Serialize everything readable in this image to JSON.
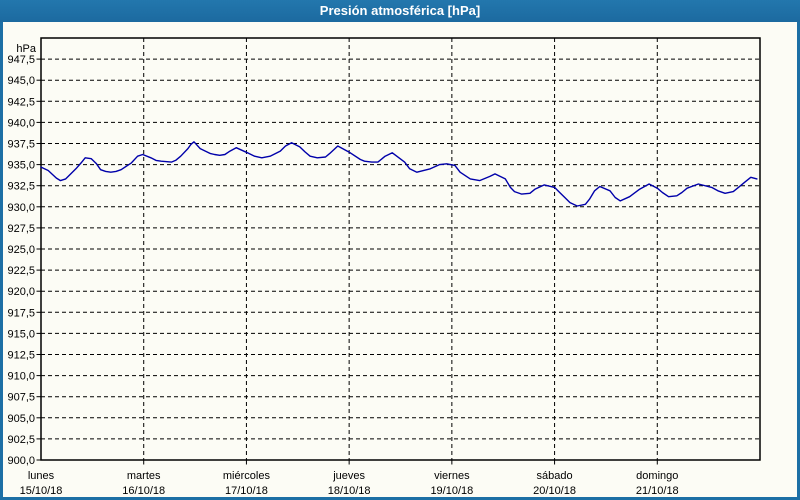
{
  "window": {
    "title": "Presión atmosférica [hPa]"
  },
  "colors": {
    "titlebar_bg": "#1d6fa5",
    "title_text": "#ffffff",
    "outer_border": "#1d6fa5",
    "background": "#fcfcf5",
    "plot_frame": "#000000",
    "grid": "#000000",
    "line": "#0000aa"
  },
  "chart_data": {
    "type": "line",
    "title": "Presión atmosférica [hPa]",
    "legend": "none",
    "grid": {
      "horizontal": "dashed",
      "vertical": "dashed"
    },
    "y_axis": {
      "unit_label": "hPa",
      "plot_top": 950.0,
      "plot_bottom": 900.0,
      "tick_step": 2.5,
      "decimal_separator": ",",
      "tick_labels": [
        "947,5",
        "945,0",
        "942,5",
        "940,0",
        "937,5",
        "935,0",
        "932,5",
        "930,0",
        "927,5",
        "925,0",
        "922,5",
        "920,0",
        "917,5",
        "915,0",
        "912,5",
        "910,0",
        "907,5",
        "905,0",
        "902,5",
        "900,0"
      ]
    },
    "x_axis": {
      "range_days": 7,
      "days": [
        {
          "name": "lunes",
          "date": "15/10/18"
        },
        {
          "name": "martes",
          "date": "16/10/18"
        },
        {
          "name": "miércoles",
          "date": "17/10/18"
        },
        {
          "name": "jueves",
          "date": "18/10/18"
        },
        {
          "name": "viernes",
          "date": "19/10/18"
        },
        {
          "name": "sábado",
          "date": "20/10/18"
        },
        {
          "name": "domingo",
          "date": "21/10/18"
        }
      ]
    },
    "series": [
      {
        "name": "Presión atmosférica",
        "color": "#0000aa",
        "units": "hPa",
        "points": [
          [
            0.0,
            934.7
          ],
          [
            0.07,
            934.3
          ],
          [
            0.15,
            933.4
          ],
          [
            0.19,
            933.1
          ],
          [
            0.24,
            933.3
          ],
          [
            0.34,
            934.5
          ],
          [
            0.39,
            935.2
          ],
          [
            0.43,
            935.8
          ],
          [
            0.49,
            935.7
          ],
          [
            0.54,
            935.1
          ],
          [
            0.58,
            934.4
          ],
          [
            0.63,
            934.2
          ],
          [
            0.68,
            934.1
          ],
          [
            0.73,
            934.2
          ],
          [
            0.78,
            934.4
          ],
          [
            0.88,
            935.2
          ],
          [
            0.94,
            936.0
          ],
          [
            0.99,
            936.2
          ],
          [
            1.07,
            935.8
          ],
          [
            1.12,
            935.5
          ],
          [
            1.17,
            935.4
          ],
          [
            1.27,
            935.3
          ],
          [
            1.31,
            935.5
          ],
          [
            1.36,
            936.0
          ],
          [
            1.43,
            936.9
          ],
          [
            1.46,
            937.4
          ],
          [
            1.49,
            937.7
          ],
          [
            1.55,
            936.9
          ],
          [
            1.65,
            936.3
          ],
          [
            1.69,
            936.2
          ],
          [
            1.74,
            936.1
          ],
          [
            1.79,
            936.2
          ],
          [
            1.84,
            936.6
          ],
          [
            1.9,
            937.0
          ],
          [
            2.01,
            936.4
          ],
          [
            2.08,
            936.0
          ],
          [
            2.15,
            935.8
          ],
          [
            2.23,
            936.0
          ],
          [
            2.33,
            936.6
          ],
          [
            2.38,
            937.2
          ],
          [
            2.44,
            937.6
          ],
          [
            2.52,
            937.1
          ],
          [
            2.57,
            936.5
          ],
          [
            2.62,
            936.0
          ],
          [
            2.69,
            935.8
          ],
          [
            2.77,
            935.9
          ],
          [
            2.81,
            936.3
          ],
          [
            2.89,
            937.2
          ],
          [
            3.01,
            936.4
          ],
          [
            3.11,
            935.6
          ],
          [
            3.15,
            935.4
          ],
          [
            3.22,
            935.3
          ],
          [
            3.28,
            935.3
          ],
          [
            3.35,
            936.0
          ],
          [
            3.42,
            936.4
          ],
          [
            3.54,
            935.3
          ],
          [
            3.59,
            934.5
          ],
          [
            3.66,
            934.1
          ],
          [
            3.79,
            934.5
          ],
          [
            3.88,
            935.0
          ],
          [
            3.95,
            935.1
          ],
          [
            4.03,
            934.9
          ],
          [
            4.08,
            934.1
          ],
          [
            4.18,
            933.3
          ],
          [
            4.27,
            933.1
          ],
          [
            4.37,
            933.6
          ],
          [
            4.42,
            933.9
          ],
          [
            4.52,
            933.3
          ],
          [
            4.57,
            932.3
          ],
          [
            4.61,
            931.8
          ],
          [
            4.68,
            931.5
          ],
          [
            4.76,
            931.6
          ],
          [
            4.81,
            932.1
          ],
          [
            4.9,
            932.6
          ],
          [
            5.0,
            932.3
          ],
          [
            5.05,
            931.7
          ],
          [
            5.1,
            931.1
          ],
          [
            5.15,
            930.5
          ],
          [
            5.22,
            930.1
          ],
          [
            5.3,
            930.3
          ],
          [
            5.34,
            930.9
          ],
          [
            5.39,
            931.9
          ],
          [
            5.44,
            932.4
          ],
          [
            5.54,
            931.9
          ],
          [
            5.59,
            931.1
          ],
          [
            5.64,
            930.7
          ],
          [
            5.73,
            931.2
          ],
          [
            5.83,
            932.1
          ],
          [
            5.92,
            932.7
          ],
          [
            6.0,
            932.2
          ],
          [
            6.05,
            931.7
          ],
          [
            6.11,
            931.2
          ],
          [
            6.19,
            931.3
          ],
          [
            6.24,
            931.7
          ],
          [
            6.29,
            932.2
          ],
          [
            6.4,
            932.7
          ],
          [
            6.53,
            932.3
          ],
          [
            6.59,
            931.9
          ],
          [
            6.66,
            931.6
          ],
          [
            6.74,
            931.8
          ],
          [
            6.79,
            932.3
          ],
          [
            6.85,
            932.9
          ],
          [
            6.91,
            933.5
          ],
          [
            6.97,
            933.3
          ]
        ]
      }
    ]
  }
}
